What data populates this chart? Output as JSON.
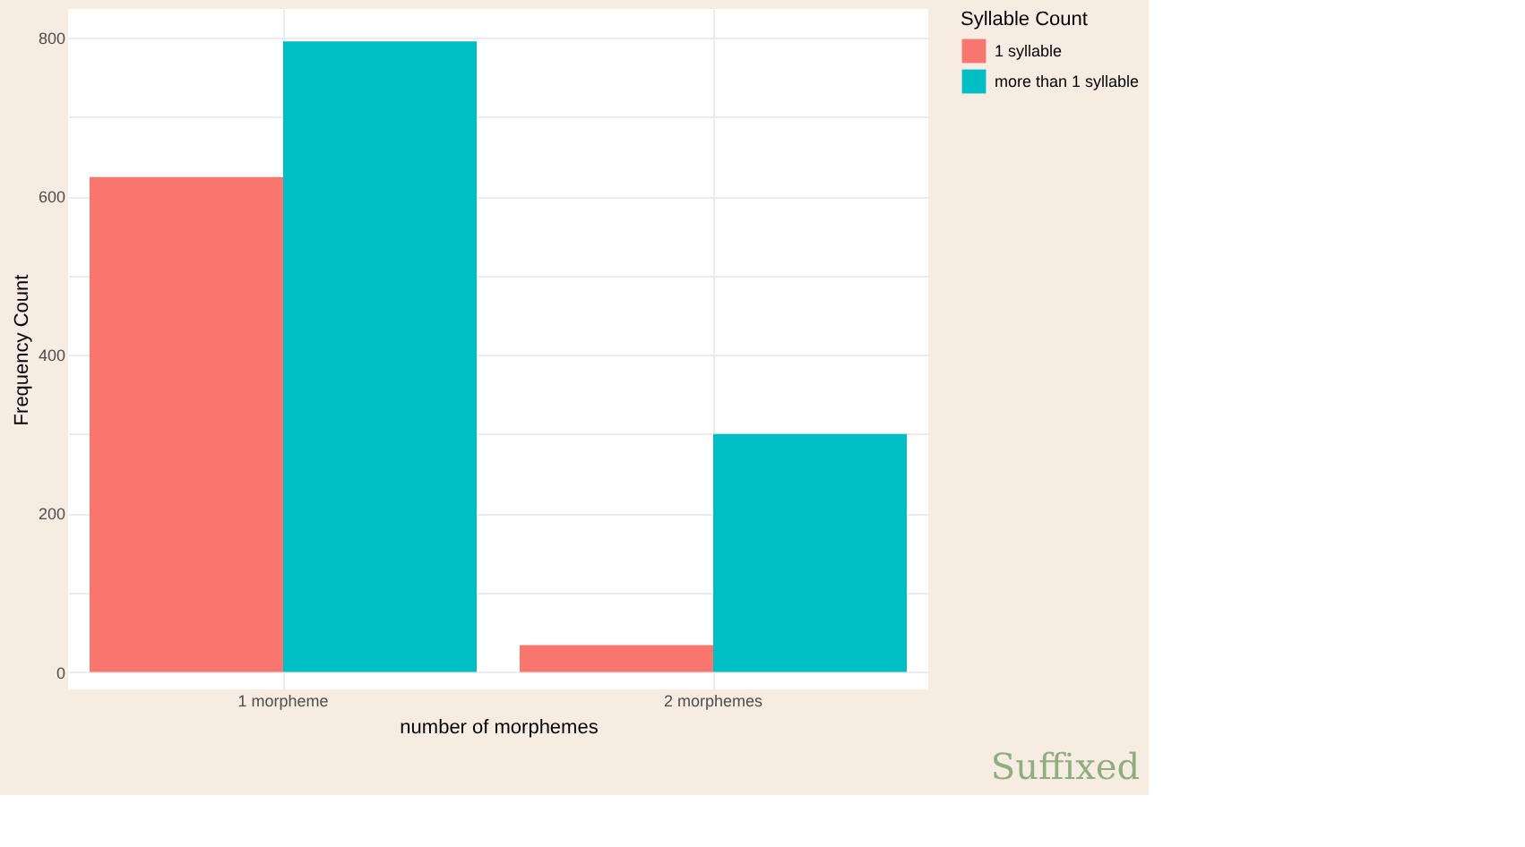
{
  "chart_data": {
    "type": "bar",
    "categories": [
      "1 morpheme",
      "2 morphemes"
    ],
    "series": [
      {
        "name": "1 syllable",
        "color": "#f8766d",
        "values": [
          624,
          34
        ]
      },
      {
        "name": "more than 1 syllable",
        "color": "#00bfc4",
        "values": [
          795,
          300
        ]
      }
    ],
    "xlabel": "number of morphemes",
    "ylabel": "Frequency Count",
    "legend_title": "Syllable Count",
    "ylim": [
      -22,
      836
    ],
    "yticks": [
      0,
      {
        "value": 100,
        "label": null
      },
      200,
      {
        "value": 300,
        "label": null
      },
      400,
      {
        "value": 500,
        "label": null
      },
      600,
      {
        "value": 700,
        "label": null
      },
      800
    ],
    "grid": true,
    "legend": "right",
    "annotations": [
      "Suffixed"
    ]
  }
}
